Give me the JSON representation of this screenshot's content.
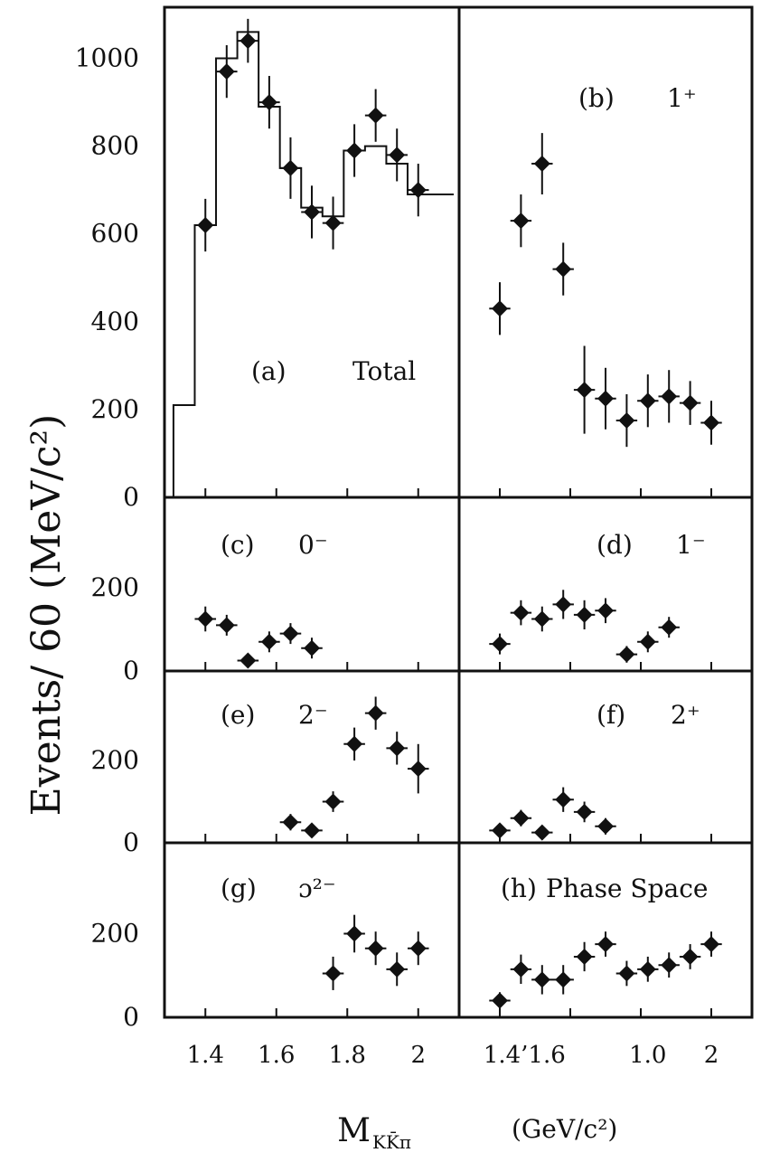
{
  "figure": {
    "ylabel": "Events/ 60 (MeV/c²)",
    "xlabel_main": "M",
    "xlabel_sub": "KK̄π",
    "xlabel_unit": "(GeV/c²)",
    "xticks_left": [
      "1.4",
      "1.6",
      "1.8",
      "2"
    ],
    "xticks_right": [
      "1.4’1.6",
      "1.0",
      "2"
    ]
  },
  "chart_data": [
    {
      "type": "scatter",
      "panel": "a",
      "label": "(a)",
      "name": "Total",
      "xlim": [
        1.3,
        2.1
      ],
      "ylim": [
        0,
        1100
      ],
      "yticks": [
        "0",
        "200",
        "400",
        "600",
        "800",
        "1000"
      ],
      "points": [
        {
          "x": 1.4,
          "y": 620,
          "ye": 60
        },
        {
          "x": 1.46,
          "y": 970,
          "ye": 60
        },
        {
          "x": 1.52,
          "y": 1040,
          "ye": 50
        },
        {
          "x": 1.58,
          "y": 900,
          "ye": 60
        },
        {
          "x": 1.64,
          "y": 750,
          "ye": 70
        },
        {
          "x": 1.7,
          "y": 650,
          "ye": 60
        },
        {
          "x": 1.76,
          "y": 625,
          "ye": 60
        },
        {
          "x": 1.82,
          "y": 790,
          "ye": 60
        },
        {
          "x": 1.88,
          "y": 870,
          "ye": 60
        },
        {
          "x": 1.94,
          "y": 780,
          "ye": 60
        },
        {
          "x": 2.0,
          "y": 700,
          "ye": 60
        }
      ],
      "histogram": [
        {
          "x0": 1.31,
          "x1": 1.37,
          "y": 210
        },
        {
          "x0": 1.37,
          "x1": 1.43,
          "y": 620
        },
        {
          "x0": 1.43,
          "x1": 1.49,
          "y": 1000
        },
        {
          "x0": 1.49,
          "x1": 1.55,
          "y": 1060
        },
        {
          "x0": 1.55,
          "x1": 1.61,
          "y": 890
        },
        {
          "x0": 1.61,
          "x1": 1.67,
          "y": 750
        },
        {
          "x0": 1.67,
          "x1": 1.73,
          "y": 660
        },
        {
          "x0": 1.73,
          "x1": 1.79,
          "y": 640
        },
        {
          "x0": 1.79,
          "x1": 1.85,
          "y": 790
        },
        {
          "x0": 1.85,
          "x1": 1.91,
          "y": 800
        },
        {
          "x0": 1.91,
          "x1": 1.97,
          "y": 760
        },
        {
          "x0": 1.97,
          "x1": 2.1,
          "y": 690
        }
      ]
    },
    {
      "type": "scatter",
      "panel": "b",
      "label": "(b)",
      "name": "1⁺",
      "xlim": [
        1.3,
        2.1
      ],
      "ylim": [
        0,
        1100
      ],
      "points": [
        {
          "x": 1.4,
          "y": 430,
          "ye": 60
        },
        {
          "x": 1.46,
          "y": 630,
          "ye": 60
        },
        {
          "x": 1.52,
          "y": 760,
          "ye": 70
        },
        {
          "x": 1.58,
          "y": 520,
          "ye": 60
        },
        {
          "x": 1.64,
          "y": 245,
          "ye": 100
        },
        {
          "x": 1.7,
          "y": 225,
          "ye": 70
        },
        {
          "x": 1.76,
          "y": 175,
          "ye": 60
        },
        {
          "x": 1.82,
          "y": 220,
          "ye": 60
        },
        {
          "x": 1.88,
          "y": 230,
          "ye": 60
        },
        {
          "x": 1.94,
          "y": 215,
          "ye": 50
        },
        {
          "x": 2.0,
          "y": 170,
          "ye": 50
        }
      ]
    },
    {
      "type": "scatter",
      "panel": "c",
      "label": "(c)",
      "name": "0⁻",
      "xlim": [
        1.3,
        2.1
      ],
      "ylim": [
        0,
        400
      ],
      "yticks": [
        "0",
        "200"
      ],
      "points": [
        {
          "x": 1.4,
          "y": 125,
          "ye": 30
        },
        {
          "x": 1.46,
          "y": 110,
          "ye": 25
        },
        {
          "x": 1.52,
          "y": 25,
          "ye": 15
        },
        {
          "x": 1.58,
          "y": 70,
          "ye": 25
        },
        {
          "x": 1.64,
          "y": 90,
          "ye": 25
        },
        {
          "x": 1.7,
          "y": 55,
          "ye": 25
        }
      ]
    },
    {
      "type": "scatter",
      "panel": "d",
      "label": "(d)",
      "name": "1⁻",
      "xlim": [
        1.3,
        2.1
      ],
      "ylim": [
        0,
        400
      ],
      "points": [
        {
          "x": 1.4,
          "y": 65,
          "ye": 25
        },
        {
          "x": 1.46,
          "y": 140,
          "ye": 30
        },
        {
          "x": 1.52,
          "y": 125,
          "ye": 30
        },
        {
          "x": 1.58,
          "y": 160,
          "ye": 35
        },
        {
          "x": 1.64,
          "y": 135,
          "ye": 35
        },
        {
          "x": 1.7,
          "y": 145,
          "ye": 30
        },
        {
          "x": 1.76,
          "y": 40,
          "ye": 20
        },
        {
          "x": 1.82,
          "y": 70,
          "ye": 25
        },
        {
          "x": 1.88,
          "y": 105,
          "ye": 25
        }
      ]
    },
    {
      "type": "scatter",
      "panel": "e",
      "label": "(e)",
      "name": "2⁻",
      "xlim": [
        1.3,
        2.1
      ],
      "ylim": [
        0,
        400
      ],
      "yticks": [
        "0",
        "200"
      ],
      "points": [
        {
          "x": 1.64,
          "y": 50,
          "ye": 20
        },
        {
          "x": 1.7,
          "y": 30,
          "ye": 15
        },
        {
          "x": 1.76,
          "y": 100,
          "ye": 25
        },
        {
          "x": 1.82,
          "y": 240,
          "ye": 40
        },
        {
          "x": 1.88,
          "y": 315,
          "ye": 40
        },
        {
          "x": 1.94,
          "y": 230,
          "ye": 40
        },
        {
          "x": 2.0,
          "y": 180,
          "ye": 60
        }
      ]
    },
    {
      "type": "scatter",
      "panel": "f",
      "label": "(f)",
      "name": "2⁺",
      "xlim": [
        1.3,
        2.1
      ],
      "ylim": [
        0,
        400
      ],
      "points": [
        {
          "x": 1.4,
          "y": 30,
          "ye": 15
        },
        {
          "x": 1.46,
          "y": 60,
          "ye": 20
        },
        {
          "x": 1.52,
          "y": 25,
          "ye": 15
        },
        {
          "x": 1.58,
          "y": 105,
          "ye": 30
        },
        {
          "x": 1.64,
          "y": 75,
          "ye": 25
        },
        {
          "x": 1.7,
          "y": 40,
          "ye": 20
        }
      ]
    },
    {
      "type": "scatter",
      "panel": "g",
      "label": "(g)",
      "name": "ɔ²⁻",
      "xlim": [
        1.3,
        2.1
      ],
      "ylim": [
        0,
        400
      ],
      "yticks": [
        "0",
        "200"
      ],
      "points": [
        {
          "x": 1.76,
          "y": 105,
          "ye": 40
        },
        {
          "x": 1.82,
          "y": 200,
          "ye": 45
        },
        {
          "x": 1.88,
          "y": 165,
          "ye": 40
        },
        {
          "x": 1.94,
          "y": 115,
          "ye": 40
        },
        {
          "x": 2.0,
          "y": 165,
          "ye": 40
        }
      ]
    },
    {
      "type": "scatter",
      "panel": "h",
      "label": "(h)",
      "name": "Phase Space",
      "xlim": [
        1.3,
        2.1
      ],
      "ylim": [
        0,
        400
      ],
      "points": [
        {
          "x": 1.4,
          "y": 40,
          "ye": 20
        },
        {
          "x": 1.46,
          "y": 115,
          "ye": 35
        },
        {
          "x": 1.52,
          "y": 90,
          "ye": 35
        },
        {
          "x": 1.58,
          "y": 90,
          "ye": 35
        },
        {
          "x": 1.64,
          "y": 145,
          "ye": 35
        },
        {
          "x": 1.7,
          "y": 175,
          "ye": 30
        },
        {
          "x": 1.76,
          "y": 105,
          "ye": 30
        },
        {
          "x": 1.82,
          "y": 115,
          "ye": 30
        },
        {
          "x": 1.88,
          "y": 125,
          "ye": 30
        },
        {
          "x": 1.94,
          "y": 145,
          "ye": 30
        },
        {
          "x": 2.0,
          "y": 175,
          "ye": 30
        }
      ]
    }
  ]
}
